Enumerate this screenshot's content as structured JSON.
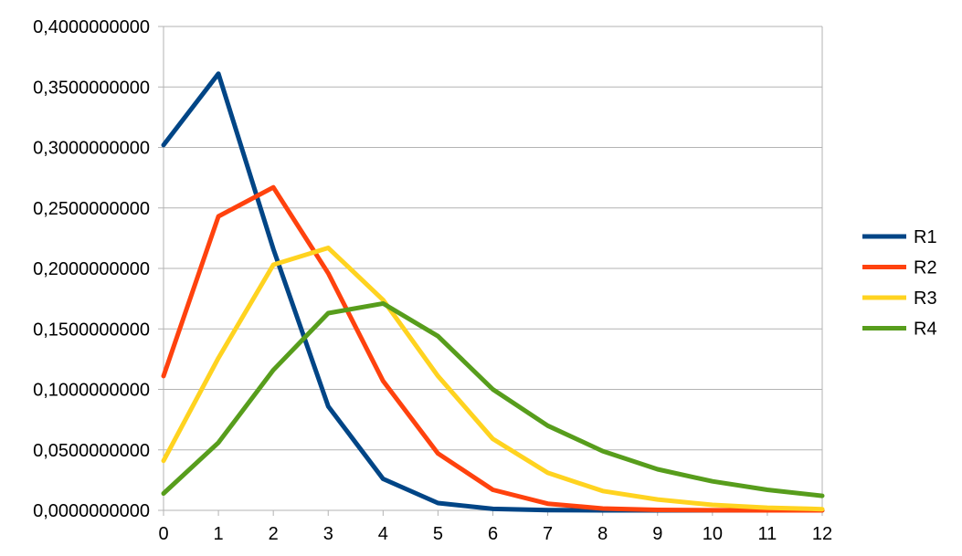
{
  "chart_data": {
    "type": "line",
    "title": "",
    "xlabel": "",
    "ylabel": "",
    "x": [
      0,
      1,
      2,
      3,
      4,
      5,
      6,
      7,
      8,
      9,
      10,
      11,
      12
    ],
    "x_tick_labels": [
      "0",
      "1",
      "2",
      "3",
      "4",
      "5",
      "6",
      "7",
      "8",
      "9",
      "10",
      "11",
      "12"
    ],
    "ylim": [
      0,
      0.4
    ],
    "y_ticks": [
      0,
      0.05,
      0.1,
      0.15,
      0.2,
      0.25,
      0.3,
      0.35,
      0.4
    ],
    "y_tick_labels": [
      "0,0000000000",
      "0,0500000000",
      "0,1000000000",
      "0,1500000000",
      "0,2000000000",
      "0,2500000000",
      "0,3000000000",
      "0,3500000000",
      "0,4000000000"
    ],
    "grid": "horizontal",
    "legend_position": "right",
    "series": [
      {
        "name": "R1",
        "color": "#004586",
        "values": [
          0.302,
          0.361,
          0.216,
          0.086,
          0.026,
          0.006,
          0.0012,
          0.0002,
          3e-05,
          4e-06,
          5e-07,
          1e-07,
          0.0
        ]
      },
      {
        "name": "R2",
        "color": "#ff420e",
        "values": [
          0.111,
          0.243,
          0.267,
          0.196,
          0.107,
          0.047,
          0.017,
          0.0055,
          0.0015,
          0.00037,
          8e-05,
          1.6e-05,
          3e-06
        ]
      },
      {
        "name": "R3",
        "color": "#ffd320",
        "values": [
          0.041,
          0.126,
          0.203,
          0.217,
          0.174,
          0.111,
          0.059,
          0.031,
          0.016,
          0.009,
          0.0045,
          0.0022,
          0.001
        ]
      },
      {
        "name": "R4",
        "color": "#579d1c",
        "values": [
          0.014,
          0.056,
          0.116,
          0.163,
          0.171,
          0.144,
          0.1,
          0.07,
          0.049,
          0.034,
          0.024,
          0.017,
          0.012
        ]
      }
    ]
  }
}
